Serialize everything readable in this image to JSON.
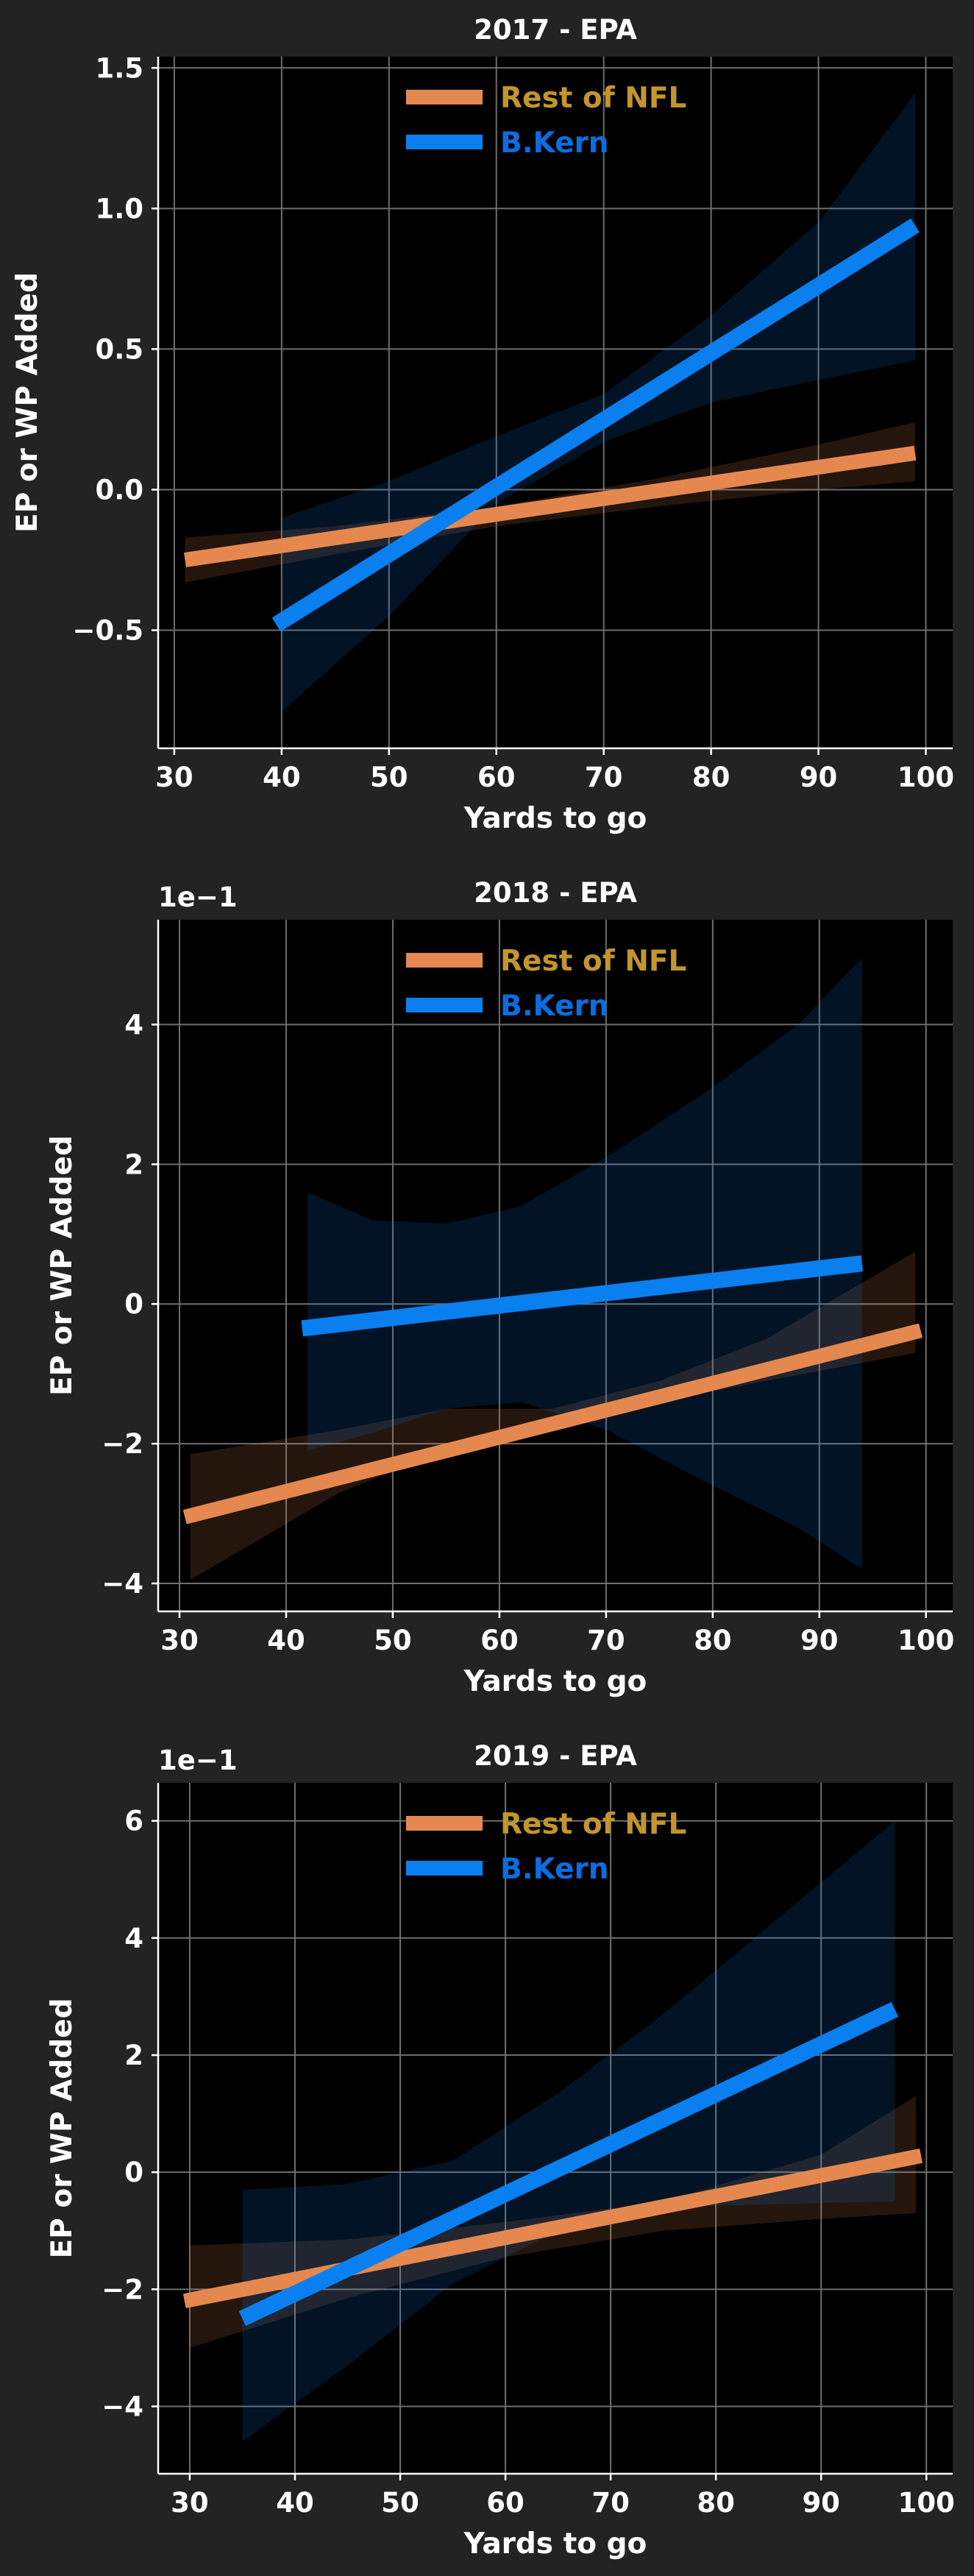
{
  "colors": {
    "figure_bg": "#232323",
    "plot_bg": "#000000",
    "grid": "#6e6e6e",
    "spine": "#ffffff",
    "text": "#ffffff",
    "rest_of_nfl": "#e58850",
    "rest_of_nfl_label": "#c2962b",
    "player": "#0a80f0",
    "player_label": "#0a6ee0"
  },
  "chart_data": [
    {
      "type": "line",
      "title": "2017 - EPA",
      "xlabel": "Yards to go",
      "ylabel": "EP or WP Added",
      "scale_label": "",
      "xlim": [
        28.5,
        102.5
      ],
      "ylim": [
        -0.92,
        1.54
      ],
      "xticks": [
        30,
        40,
        50,
        60,
        70,
        80,
        90,
        100
      ],
      "xtick_labels": [
        "30",
        "40",
        "50",
        "60",
        "70",
        "80",
        "90",
        "100"
      ],
      "yticks": [
        -0.5,
        0.0,
        0.5,
        1.0,
        1.5
      ],
      "ytick_labels": [
        "−0.5",
        "0.0",
        "0.5",
        "1.0",
        "1.5"
      ],
      "legend": "top-center",
      "grid": true,
      "series": [
        {
          "name": "Rest of NFL",
          "x": [
            31,
            99
          ],
          "y": [
            -0.25,
            0.13
          ],
          "band": {
            "x": [
              31,
              45,
              60,
              75,
              90,
              99
            ],
            "lower": [
              -0.33,
              -0.23,
              -0.13,
              -0.06,
              0.0,
              0.03
            ],
            "upper": [
              -0.17,
              -0.13,
              -0.06,
              0.04,
              0.16,
              0.24
            ]
          }
        },
        {
          "name": "B.Kern",
          "x": [
            39.5,
            99
          ],
          "y": [
            -0.48,
            0.94
          ],
          "band": {
            "x": [
              40,
              50,
              55,
              60,
              70,
              80,
              90,
              99
            ],
            "lower": [
              -0.79,
              -0.45,
              -0.25,
              -0.05,
              0.17,
              0.31,
              0.39,
              0.46
            ],
            "upper": [
              -0.1,
              0.03,
              0.11,
              0.19,
              0.34,
              0.62,
              0.95,
              1.41
            ]
          }
        }
      ]
    },
    {
      "type": "line",
      "title": "2018 - EPA",
      "xlabel": "Yards to go",
      "ylabel": "EP or WP Added",
      "scale_label": "1e−1",
      "xlim": [
        28,
        102.5
      ],
      "ylim": [
        -4.4,
        5.5
      ],
      "xticks": [
        30,
        40,
        50,
        60,
        70,
        80,
        90,
        100
      ],
      "xtick_labels": [
        "30",
        "40",
        "50",
        "60",
        "70",
        "80",
        "90",
        "100"
      ],
      "yticks": [
        -4,
        -2,
        0,
        2,
        4
      ],
      "ytick_labels": [
        "−4",
        "−2",
        "0",
        "2",
        "4"
      ],
      "legend": "top-center",
      "grid": true,
      "series": [
        {
          "name": "Rest of NFL",
          "x": [
            30.5,
            99.5
          ],
          "y": [
            -3.05,
            -0.38
          ],
          "band": {
            "x": [
              31,
              45,
              55,
              65,
              75,
              85,
              99
            ],
            "lower": [
              -3.95,
              -2.7,
              -2.1,
              -1.8,
              -1.4,
              -1.1,
              -0.7
            ],
            "upper": [
              -2.15,
              -1.8,
              -1.5,
              -1.5,
              -1.1,
              -0.5,
              0.75
            ]
          }
        },
        {
          "name": "B.Kern",
          "x": [
            41.5,
            94
          ],
          "y": [
            -0.35,
            0.58
          ],
          "band": {
            "x": [
              42,
              48,
              55,
              62,
              70,
              80,
              88,
              94
            ],
            "lower": [
              -2.1,
              -1.85,
              -1.5,
              -1.4,
              -1.8,
              -2.6,
              -3.2,
              -3.8
            ],
            "upper": [
              1.6,
              1.2,
              1.15,
              1.4,
              2.1,
              3.1,
              4.0,
              4.95
            ]
          }
        }
      ]
    },
    {
      "type": "line",
      "title": "2019 - EPA",
      "xlabel": "Yards to go",
      "ylabel": "EP or WP Added",
      "scale_label": "1e−1",
      "xlim": [
        27,
        102.5
      ],
      "ylim": [
        -5.15,
        6.65
      ],
      "xticks": [
        30,
        40,
        50,
        60,
        70,
        80,
        90,
        100
      ],
      "xtick_labels": [
        "30",
        "40",
        "50",
        "60",
        "70",
        "80",
        "90",
        "100"
      ],
      "yticks": [
        -4,
        -2,
        0,
        2,
        4,
        6
      ],
      "ytick_labels": [
        "−4",
        "−2",
        "0",
        "2",
        "4",
        "6"
      ],
      "legend": "top-center",
      "grid": true,
      "series": [
        {
          "name": "Rest of NFL",
          "x": [
            29.5,
            99.5
          ],
          "y": [
            -2.2,
            0.28
          ],
          "band": {
            "x": [
              30,
              45,
              60,
              75,
              90,
              99
            ],
            "lower": [
              -3.0,
              -2.15,
              -1.45,
              -1.0,
              -0.8,
              -0.7
            ],
            "upper": [
              -1.25,
              -1.15,
              -0.85,
              -0.5,
              0.3,
              1.3
            ]
          }
        },
        {
          "name": "B.Kern",
          "x": [
            35,
            97
          ],
          "y": [
            -2.5,
            2.78
          ],
          "band": {
            "x": [
              35,
              45,
              55,
              65,
              75,
              85,
              97
            ],
            "lower": [
              -4.6,
              -3.3,
              -1.9,
              -1.0,
              -0.6,
              -0.55,
              -0.5
            ],
            "upper": [
              -0.3,
              -0.2,
              0.2,
              1.35,
              2.7,
              4.2,
              6.0
            ]
          }
        }
      ]
    }
  ]
}
